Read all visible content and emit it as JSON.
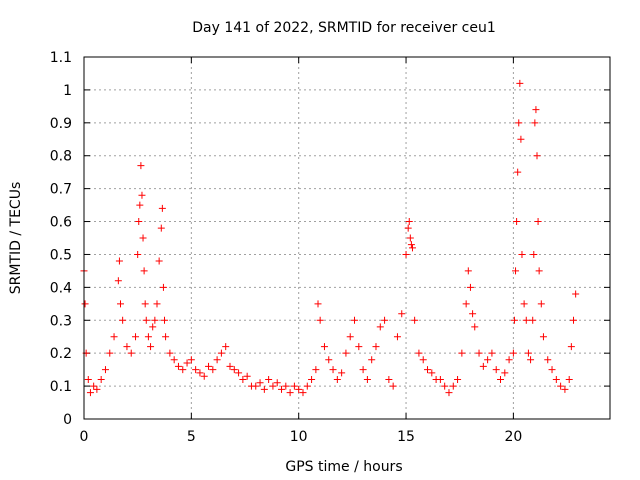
{
  "chart_data": {
    "type": "scatter",
    "title": "Day 141 of 2022, SRMTID for receiver ceu1",
    "xlabel": "GPS time / hours",
    "ylabel": "SRMTID / TECUs",
    "xlim": [
      0,
      24.5
    ],
    "ylim": [
      0,
      1.1
    ],
    "xticks": [
      0,
      5,
      10,
      15,
      20
    ],
    "xtick_labels": [
      "0",
      "5",
      "10",
      "15",
      "20"
    ],
    "yticks": [
      0,
      0.1,
      0.2,
      0.3,
      0.4,
      0.5,
      0.6,
      0.7,
      0.8,
      0.9,
      1,
      1.1
    ],
    "ytick_labels": [
      "0",
      "0.1",
      "0.2",
      "0.3",
      "0.4",
      "0.5",
      "0.6",
      "0.7",
      "0.8",
      "0.9",
      "1",
      "1.1"
    ],
    "grid": true,
    "marker": "+",
    "color": "#ff0000",
    "series": [
      {
        "name": "SRMTID",
        "x": [
          0.0,
          0.05,
          0.1,
          0.2,
          0.3,
          0.45,
          0.6,
          0.8,
          1.0,
          1.2,
          1.4,
          1.6,
          1.65,
          1.7,
          1.8,
          2.0,
          2.2,
          2.4,
          2.5,
          2.55,
          2.6,
          2.65,
          2.7,
          2.75,
          2.8,
          2.85,
          2.9,
          3.0,
          3.1,
          3.2,
          3.3,
          3.4,
          3.5,
          3.6,
          3.65,
          3.7,
          3.75,
          3.8,
          4.0,
          4.2,
          4.4,
          4.6,
          4.8,
          5.0,
          5.2,
          5.4,
          5.6,
          5.8,
          6.0,
          6.2,
          6.4,
          6.6,
          6.8,
          7.0,
          7.2,
          7.4,
          7.6,
          7.8,
          8.0,
          8.2,
          8.4,
          8.6,
          8.8,
          9.0,
          9.2,
          9.4,
          9.6,
          9.8,
          10.0,
          10.2,
          10.4,
          10.6,
          10.8,
          10.9,
          11.0,
          11.2,
          11.4,
          11.6,
          11.8,
          12.0,
          12.2,
          12.4,
          12.6,
          12.8,
          13.0,
          13.2,
          13.4,
          13.6,
          13.8,
          14.0,
          14.2,
          14.4,
          14.6,
          14.8,
          15.0,
          15.1,
          15.15,
          15.2,
          15.25,
          15.3,
          15.4,
          15.6,
          15.8,
          16.0,
          16.2,
          16.4,
          16.6,
          16.8,
          17.0,
          17.2,
          17.4,
          17.6,
          17.8,
          17.9,
          18.0,
          18.1,
          18.2,
          18.4,
          18.6,
          18.8,
          19.0,
          19.2,
          19.4,
          19.6,
          19.8,
          20.0,
          20.05,
          20.1,
          20.15,
          20.2,
          20.25,
          20.3,
          20.35,
          20.4,
          20.5,
          20.6,
          20.7,
          20.8,
          20.9,
          20.95,
          21.0,
          21.05,
          21.1,
          21.15,
          21.2,
          21.3,
          21.4,
          21.6,
          21.8,
          22.0,
          22.2,
          22.4,
          22.6,
          22.7,
          22.8,
          22.9
        ],
        "y": [
          0.45,
          0.35,
          0.2,
          0.12,
          0.08,
          0.1,
          0.09,
          0.12,
          0.15,
          0.2,
          0.25,
          0.42,
          0.48,
          0.35,
          0.3,
          0.22,
          0.2,
          0.25,
          0.5,
          0.6,
          0.65,
          0.77,
          0.68,
          0.55,
          0.45,
          0.35,
          0.3,
          0.25,
          0.22,
          0.28,
          0.3,
          0.35,
          0.48,
          0.58,
          0.64,
          0.4,
          0.3,
          0.25,
          0.2,
          0.18,
          0.16,
          0.15,
          0.17,
          0.18,
          0.15,
          0.14,
          0.13,
          0.16,
          0.15,
          0.18,
          0.2,
          0.22,
          0.16,
          0.15,
          0.14,
          0.12,
          0.13,
          0.1,
          0.1,
          0.11,
          0.09,
          0.12,
          0.1,
          0.11,
          0.09,
          0.1,
          0.08,
          0.1,
          0.09,
          0.08,
          0.1,
          0.12,
          0.15,
          0.35,
          0.3,
          0.22,
          0.18,
          0.15,
          0.12,
          0.14,
          0.2,
          0.25,
          0.3,
          0.22,
          0.15,
          0.12,
          0.18,
          0.22,
          0.28,
          0.3,
          0.12,
          0.1,
          0.25,
          0.32,
          0.5,
          0.58,
          0.6,
          0.55,
          0.53,
          0.52,
          0.3,
          0.2,
          0.18,
          0.15,
          0.14,
          0.12,
          0.12,
          0.1,
          0.08,
          0.1,
          0.12,
          0.2,
          0.35,
          0.45,
          0.4,
          0.32,
          0.28,
          0.2,
          0.16,
          0.18,
          0.2,
          0.15,
          0.12,
          0.14,
          0.18,
          0.2,
          0.3,
          0.45,
          0.6,
          0.75,
          0.9,
          1.02,
          0.85,
          0.5,
          0.35,
          0.3,
          0.2,
          0.18,
          0.3,
          0.5,
          0.9,
          0.94,
          0.8,
          0.6,
          0.45,
          0.35,
          0.25,
          0.18,
          0.15,
          0.12,
          0.1,
          0.09,
          0.12,
          0.22,
          0.3,
          0.38
        ]
      }
    ]
  }
}
